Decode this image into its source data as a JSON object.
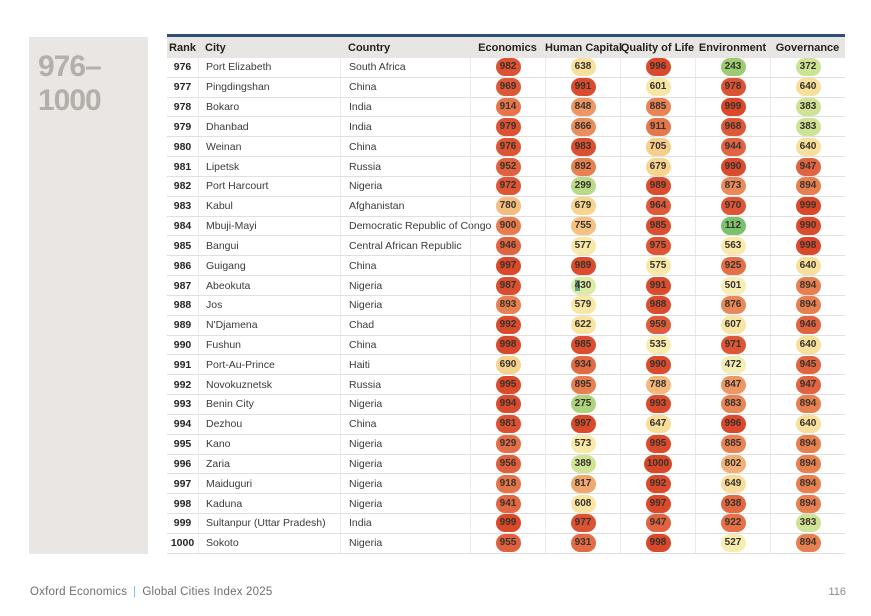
{
  "page": {
    "range_label": "976–1000"
  },
  "table": {
    "columns": [
      "Rank",
      "City",
      "Country",
      "Economics",
      "Human Capital",
      "Quality of Life",
      "Environment",
      "Governance"
    ],
    "rows": [
      {
        "rank": "976",
        "city": "Port Elizabeth",
        "country": "South Africa",
        "scores": [
          982,
          638,
          996,
          243,
          372
        ]
      },
      {
        "rank": "977",
        "city": "Pingdingshan",
        "country": "China",
        "scores": [
          969,
          991,
          601,
          978,
          640
        ]
      },
      {
        "rank": "978",
        "city": "Bokaro",
        "country": "India",
        "scores": [
          914,
          848,
          885,
          999,
          383
        ]
      },
      {
        "rank": "979",
        "city": "Dhanbad",
        "country": "India",
        "scores": [
          979,
          866,
          911,
          968,
          383
        ]
      },
      {
        "rank": "980",
        "city": "Weinan",
        "country": "China",
        "scores": [
          976,
          983,
          705,
          944,
          640
        ]
      },
      {
        "rank": "981",
        "city": "Lipetsk",
        "country": "Russia",
        "scores": [
          952,
          892,
          679,
          990,
          947
        ]
      },
      {
        "rank": "982",
        "city": "Port Harcourt",
        "country": "Nigeria",
        "scores": [
          972,
          299,
          989,
          873,
          894
        ]
      },
      {
        "rank": "983",
        "city": "Kabul",
        "country": "Afghanistan",
        "scores": [
          780,
          679,
          964,
          970,
          999
        ]
      },
      {
        "rank": "984",
        "city": "Mbuji-Mayi",
        "country": "Democratic Republic of Congo",
        "scores": [
          900,
          755,
          985,
          112,
          990
        ]
      },
      {
        "rank": "985",
        "city": "Bangui",
        "country": "Central African Republic",
        "scores": [
          946,
          577,
          975,
          563,
          998
        ]
      },
      {
        "rank": "986",
        "city": "Guigang",
        "country": "China",
        "scores": [
          997,
          989,
          575,
          925,
          640
        ]
      },
      {
        "rank": "987",
        "city": "Abeokuta",
        "country": "Nigeria",
        "scores": [
          987,
          430,
          991,
          501,
          894
        ]
      },
      {
        "rank": "988",
        "city": "Jos",
        "country": "Nigeria",
        "scores": [
          893,
          579,
          988,
          876,
          894
        ]
      },
      {
        "rank": "989",
        "city": "N'Djamena",
        "country": "Chad",
        "scores": [
          992,
          622,
          959,
          607,
          946
        ]
      },
      {
        "rank": "990",
        "city": "Fushun",
        "country": "China",
        "scores": [
          998,
          985,
          535,
          971,
          640
        ]
      },
      {
        "rank": "991",
        "city": "Port-Au-Prince",
        "country": "Haiti",
        "scores": [
          690,
          934,
          990,
          472,
          945
        ]
      },
      {
        "rank": "992",
        "city": "Novokuznetsk",
        "country": "Russia",
        "scores": [
          995,
          895,
          788,
          847,
          947
        ]
      },
      {
        "rank": "993",
        "city": "Benin City",
        "country": "Nigeria",
        "scores": [
          994,
          275,
          993,
          883,
          894
        ]
      },
      {
        "rank": "994",
        "city": "Dezhou",
        "country": "China",
        "scores": [
          981,
          997,
          647,
          996,
          640
        ]
      },
      {
        "rank": "995",
        "city": "Kano",
        "country": "Nigeria",
        "scores": [
          929,
          573,
          995,
          885,
          894
        ]
      },
      {
        "rank": "996",
        "city": "Zaria",
        "country": "Nigeria",
        "scores": [
          956,
          389,
          1000,
          802,
          894
        ]
      },
      {
        "rank": "997",
        "city": "Maiduguri",
        "country": "Nigeria",
        "scores": [
          918,
          817,
          992,
          649,
          894
        ]
      },
      {
        "rank": "998",
        "city": "Kaduna",
        "country": "Nigeria",
        "scores": [
          941,
          608,
          997,
          938,
          894
        ]
      },
      {
        "rank": "999",
        "city": "Sultanpur (Uttar Pradesh)",
        "country": "India",
        "scores": [
          999,
          977,
          947,
          922,
          383
        ]
      },
      {
        "rank": "1000",
        "city": "Sokoto",
        "country": "Nigeria",
        "scores": [
          955,
          931,
          998,
          527,
          894
        ]
      }
    ],
    "selection_artifact": {
      "rank": "987",
      "score_index": 1,
      "highlighted_chars": 1
    }
  },
  "footer": {
    "brand": "Oxford Economics",
    "separator": "|",
    "title": "Global Cities Index 2025",
    "page_number": "116"
  },
  "colors": {
    "header_top_border": "#2f4d77",
    "header_bg": "#e8e6e3",
    "sidebar_bg": "#e9e6e3",
    "sidebar_text": "#b3afa9",
    "footer_pipe": "#85b7d9",
    "scale": [
      [
        100,
        "#78c16b"
      ],
      [
        250,
        "#9ecd72"
      ],
      [
        310,
        "#c0dd8e"
      ],
      [
        390,
        "#cfe497"
      ],
      [
        440,
        "#e0edaa"
      ],
      [
        480,
        "#f5efba"
      ],
      [
        540,
        "#f9ecae"
      ],
      [
        610,
        "#f8e5a4"
      ],
      [
        660,
        "#f7db96"
      ],
      [
        710,
        "#f6cc8a"
      ],
      [
        780,
        "#f4bd80"
      ],
      [
        820,
        "#efa76d"
      ],
      [
        860,
        "#ea9060"
      ],
      [
        900,
        "#e77d4e"
      ],
      [
        950,
        "#e06240"
      ],
      [
        1000,
        "#d94729"
      ]
    ]
  }
}
